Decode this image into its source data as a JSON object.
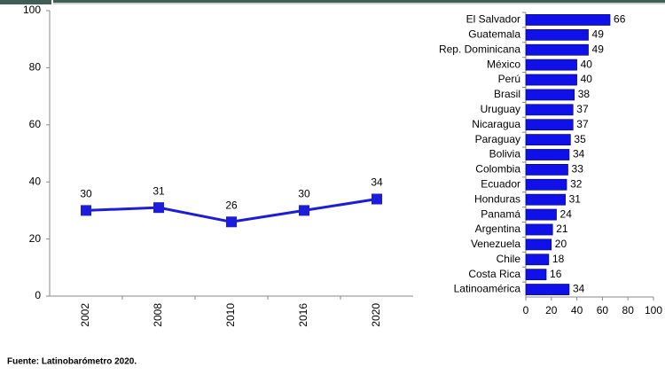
{
  "chart_data": [
    {
      "type": "line",
      "categories": [
        "2002",
        "2008",
        "2010",
        "2016",
        "2020"
      ],
      "values": [
        30,
        31,
        26,
        30,
        34
      ],
      "color": "#1c1cdc",
      "ylim": [
        0,
        100
      ],
      "yticks": [
        0,
        20,
        40,
        60,
        80,
        100
      ],
      "grid": false
    },
    {
      "type": "hbar",
      "categories": [
        "El Salvador",
        "Guatemala",
        "Rep. Dominicana",
        "México",
        "Perú",
        "Brasil",
        "Uruguay",
        "Nicaragua",
        "Paraguay",
        "Bolivia",
        "Colombia",
        "Ecuador",
        "Honduras",
        "Panamá",
        "Argentina",
        "Venezuela",
        "Chile",
        "Costa Rica",
        "Latinoamérica"
      ],
      "values": [
        66,
        49,
        49,
        40,
        40,
        38,
        37,
        37,
        35,
        34,
        33,
        32,
        31,
        24,
        21,
        20,
        18,
        16,
        34
      ],
      "color": "#1010e8",
      "xlim": [
        0,
        100
      ],
      "xticks": [
        0,
        20,
        40,
        60,
        80,
        100
      ],
      "grid": false
    }
  ],
  "source": "Fuente: Latinobarómetro 2020."
}
